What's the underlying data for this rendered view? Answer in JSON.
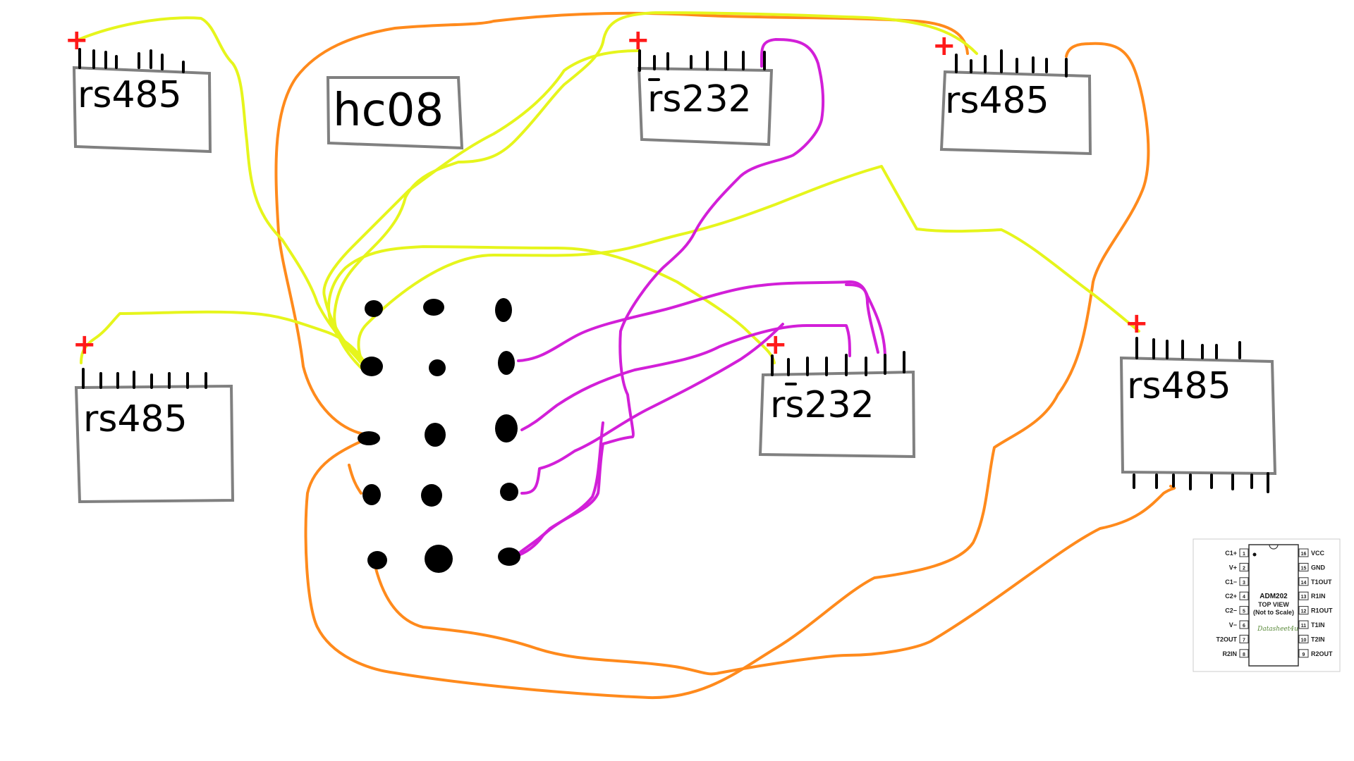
{
  "labels": {
    "rs485_top_left": "rs485",
    "hc08": "hc08",
    "rs232_top": "rs232",
    "rs485_top_right": "rs485",
    "rs485_left": "rs485",
    "rs232_mid": "rs232",
    "rs485_right": "rs485",
    "plus": "+"
  },
  "colors": {
    "yellow_wire": "#e6f51c",
    "orange_wire": "#ff8a1c",
    "magenta_wire": "#d21fd8",
    "chip_outline": "#808080",
    "plus_marker": "#ff1a1a"
  },
  "datasheet": {
    "chip": "ADM202",
    "view": "TOP VIEW",
    "note": "(Not to Scale)",
    "watermark": "Datasheet4u",
    "left_pins": [
      {
        "num": "1",
        "name": "C1+"
      },
      {
        "num": "2",
        "name": "V+"
      },
      {
        "num": "3",
        "name": "C1−"
      },
      {
        "num": "4",
        "name": "C2+"
      },
      {
        "num": "5",
        "name": "C2−"
      },
      {
        "num": "6",
        "name": "V−"
      },
      {
        "num": "7",
        "name": "T2OUT"
      },
      {
        "num": "8",
        "name": "R2IN"
      }
    ],
    "right_pins": [
      {
        "num": "16",
        "name": "VCC"
      },
      {
        "num": "15",
        "name": "GND"
      },
      {
        "num": "14",
        "name": "T1OUT"
      },
      {
        "num": "13",
        "name": "R1IN"
      },
      {
        "num": "12",
        "name": "R1OUT"
      },
      {
        "num": "11",
        "name": "T1IN"
      },
      {
        "num": "10",
        "name": "T2IN"
      },
      {
        "num": "9",
        "name": "R2OUT"
      }
    ]
  }
}
